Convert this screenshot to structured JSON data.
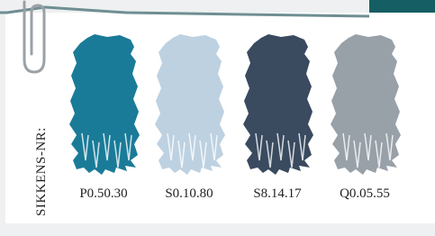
{
  "label": "SIKKENS-NR:",
  "swatches": [
    {
      "code": "P0.50.30",
      "color": "#1a7b98"
    },
    {
      "code": "S0.10.80",
      "color": "#bdd1e1"
    },
    {
      "code": "S8.14.17",
      "color": "#3a4a5f"
    },
    {
      "code": "Q0.05.55",
      "color": "#98a0a8"
    }
  ]
}
